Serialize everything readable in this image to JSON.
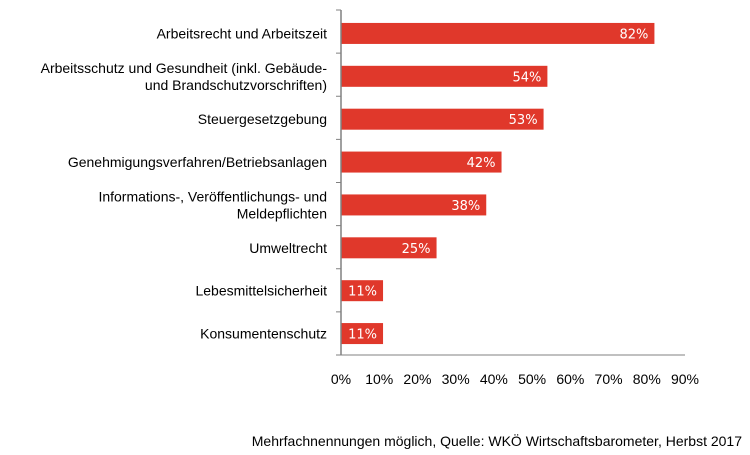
{
  "chart_data": {
    "type": "bar",
    "orientation": "horizontal",
    "categories": [
      [
        "Arbeitsrecht und Arbeitszeit"
      ],
      [
        "Arbeitsschutz und Gesundheit (inkl. Gebäude-",
        "und Brandschutzvorschriften)"
      ],
      [
        "Steuergesetzgebung"
      ],
      [
        "Genehmigungsverfahren/Betriebsanlagen"
      ],
      [
        "Informations-, Veröffentlichungs- und",
        "Meldepflichten"
      ],
      [
        "Umweltrecht"
      ],
      [
        "Lebesmittelsicherheit"
      ],
      [
        "Konsumentenschutz"
      ]
    ],
    "values": [
      82,
      54,
      53,
      42,
      38,
      25,
      11,
      11
    ],
    "data_labels": [
      "82%",
      "54%",
      "53%",
      "42%",
      "38%",
      "25%",
      "11%",
      "11%"
    ],
    "xlim": [
      0,
      90
    ],
    "x_ticks": [
      "0%",
      "10%",
      "20%",
      "30%",
      "40%",
      "50%",
      "60%",
      "70%",
      "80%",
      "90%"
    ],
    "grid": false,
    "bar_color": "#e0382b",
    "footnote": "Mehrfachnennungen möglich, Quelle: WKÖ Wirtschaftsbarometer, Herbst 2017"
  }
}
